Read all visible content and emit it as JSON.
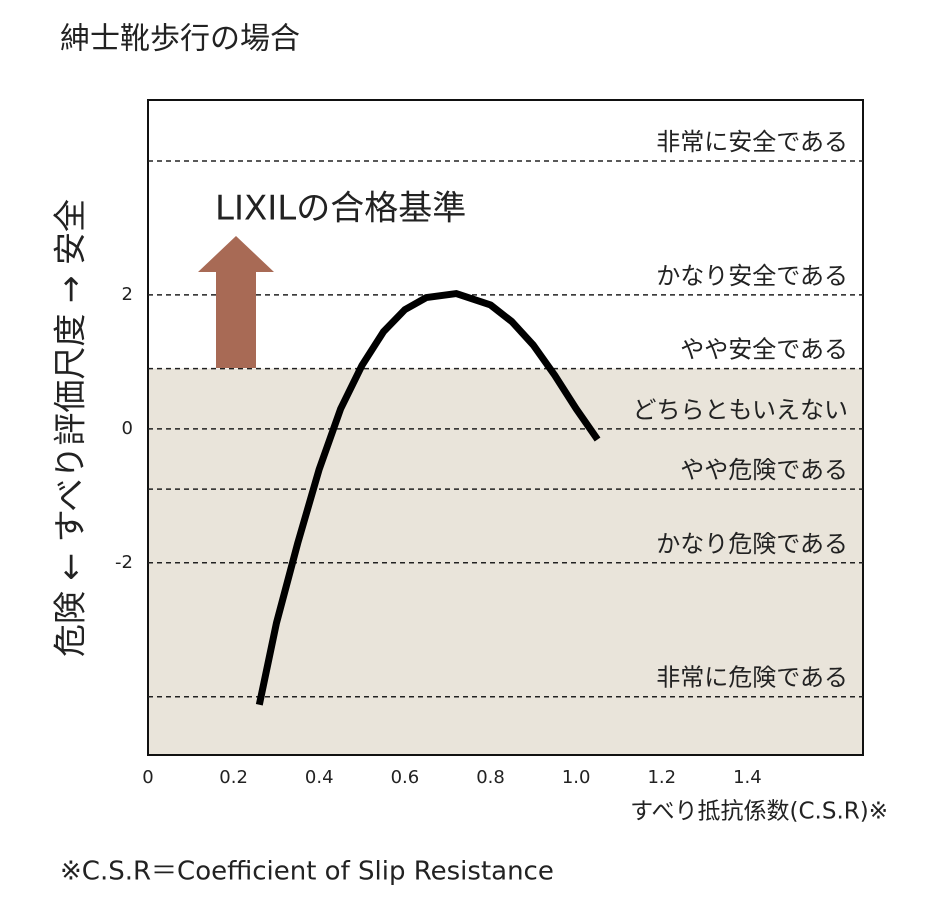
{
  "chart_data": {
    "type": "line",
    "title": "紳士靴歩行の場合",
    "x_label": "すべり抵抗係数(C.S.R)※",
    "y_label": "危険 ← すべり評価尺度 → 安全",
    "footnote": "※C.S.R＝Coefficient of Slip Resistance",
    "annotation": "LIXILの合格基準",
    "x": [
      0.26,
      0.3,
      0.35,
      0.4,
      0.45,
      0.5,
      0.55,
      0.6,
      0.65,
      0.72,
      0.8,
      0.85,
      0.9,
      0.95,
      1.0,
      1.05
    ],
    "series": [
      {
        "color": "#000000",
        "values": [
          -4.12,
          -2.9,
          -1.7,
          -0.6,
          0.3,
          0.95,
          1.45,
          1.78,
          1.96,
          2.02,
          1.85,
          1.6,
          1.25,
          0.8,
          0.3,
          -0.16
        ]
      }
    ],
    "xlim": [
      0,
      1.67
    ],
    "ylim": [
      -4.87,
      4.91
    ],
    "xticks": [
      0,
      0.2,
      0.4,
      0.6,
      0.8,
      {
        "value": 1,
        "label": "1.0"
      },
      1.2,
      1.4
    ],
    "yticks": [
      2,
      0,
      -2
    ],
    "reference_lines": [
      {
        "value": 4,
        "label": "非常に安全である"
      },
      {
        "value": 2,
        "label": "かなり安全である"
      },
      {
        "value": 0.9,
        "label": "やや安全である"
      },
      {
        "value": 0,
        "label": "どちらともいえない"
      },
      {
        "value": -0.9,
        "label": "やや危険である"
      },
      {
        "value": -2,
        "label": "かなり危険である"
      },
      {
        "value": -4,
        "label": "非常に危険である"
      }
    ],
    "shade_below": 0.9,
    "shade_color": "#e9e4da"
  }
}
